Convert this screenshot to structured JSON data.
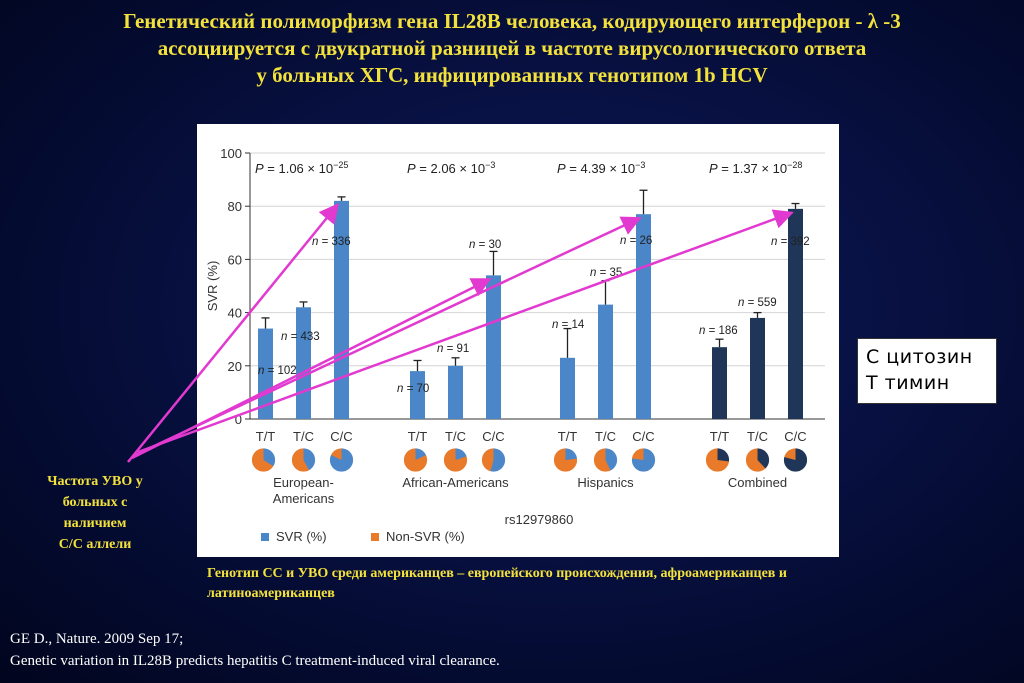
{
  "title": {
    "line1": "Генетический полиморфизм  гена IL28B человека, кодирующего интерферон - λ -3",
    "line2": "ассоциируется с двукратной разницей в частоте вирусологического ответа",
    "line3": "у больных ХГС, инфицированных генотипом 1b HCV"
  },
  "legend_box": {
    "line1": "С  цитозин",
    "line2": "Т  тимин"
  },
  "left_note": {
    "lines": [
      "Частота УВО у",
      "больных с",
      "наличием",
      "С/С аллели"
    ]
  },
  "caption": {
    "line1": "Генотип СС и УВО среди американцев – европейского происхождения, афроамериканцев и",
    "line2": "латиноамериканцев"
  },
  "reference": {
    "line1": "GE D., Nature. 2009 Sep 17;",
    "line2": " Genetic variation in IL28B predicts hepatitis C treatment-induced viral clearance."
  },
  "colors": {
    "title": "#f4e23c",
    "svr": "#4a86c8",
    "svr_combined": "#1f3658",
    "non_svr": "#e87a2a",
    "arrow": "#e23ad0",
    "axis": "#333333"
  },
  "chart_data": {
    "type": "bar",
    "ylabel": "SVR (%)",
    "ylim": [
      0,
      100
    ],
    "yticks": [
      "0",
      "20",
      "40",
      "60",
      "80",
      "100"
    ],
    "xlabel": "rs12979860",
    "genotypes": [
      "T/T",
      "T/C",
      "C/C"
    ],
    "legend": [
      "SVR (%)",
      "Non-SVR (%)"
    ],
    "groups": [
      {
        "name": "European-\nAmericans",
        "p_base": "1.06 × 10",
        "p_exp": "−25",
        "bars": [
          {
            "genotype": "T/T",
            "value": 34,
            "err": 4,
            "n_label": "= 102"
          },
          {
            "genotype": "T/C",
            "value": 42,
            "err": 2,
            "n_label": "= 433"
          },
          {
            "genotype": "C/C",
            "value": 82,
            "err": 1.5,
            "n_label": "= 336"
          }
        ]
      },
      {
        "name": "African-Americans",
        "p_base": "2.06 × 10",
        "p_exp": "−3",
        "bars": [
          {
            "genotype": "T/T",
            "value": 18,
            "err": 4,
            "n_label": "= 70"
          },
          {
            "genotype": "T/C",
            "value": 20,
            "err": 3,
            "n_label": "= 91"
          },
          {
            "genotype": "C/C",
            "value": 54,
            "err": 9,
            "n_label": "= 30"
          }
        ]
      },
      {
        "name": "Hispanics",
        "p_base": "4.39 × 10",
        "p_exp": "−3",
        "bars": [
          {
            "genotype": "T/T",
            "value": 23,
            "err": 11,
            "n_label": "= 14"
          },
          {
            "genotype": "T/C",
            "value": 43,
            "err": 9,
            "n_label": "= 35"
          },
          {
            "genotype": "C/C",
            "value": 77,
            "err": 9,
            "n_label": "= 26"
          }
        ]
      },
      {
        "name": "Combined",
        "p_base": "1.37 × 10",
        "p_exp": "−28",
        "bars": [
          {
            "genotype": "T/T",
            "value": 27,
            "err": 3,
            "n_label": "= 186"
          },
          {
            "genotype": "T/C",
            "value": 38,
            "err": 2,
            "n_label": "= 559"
          },
          {
            "genotype": "C/C",
            "value": 79,
            "err": 2,
            "n_label": "= 392"
          }
        ]
      }
    ]
  }
}
